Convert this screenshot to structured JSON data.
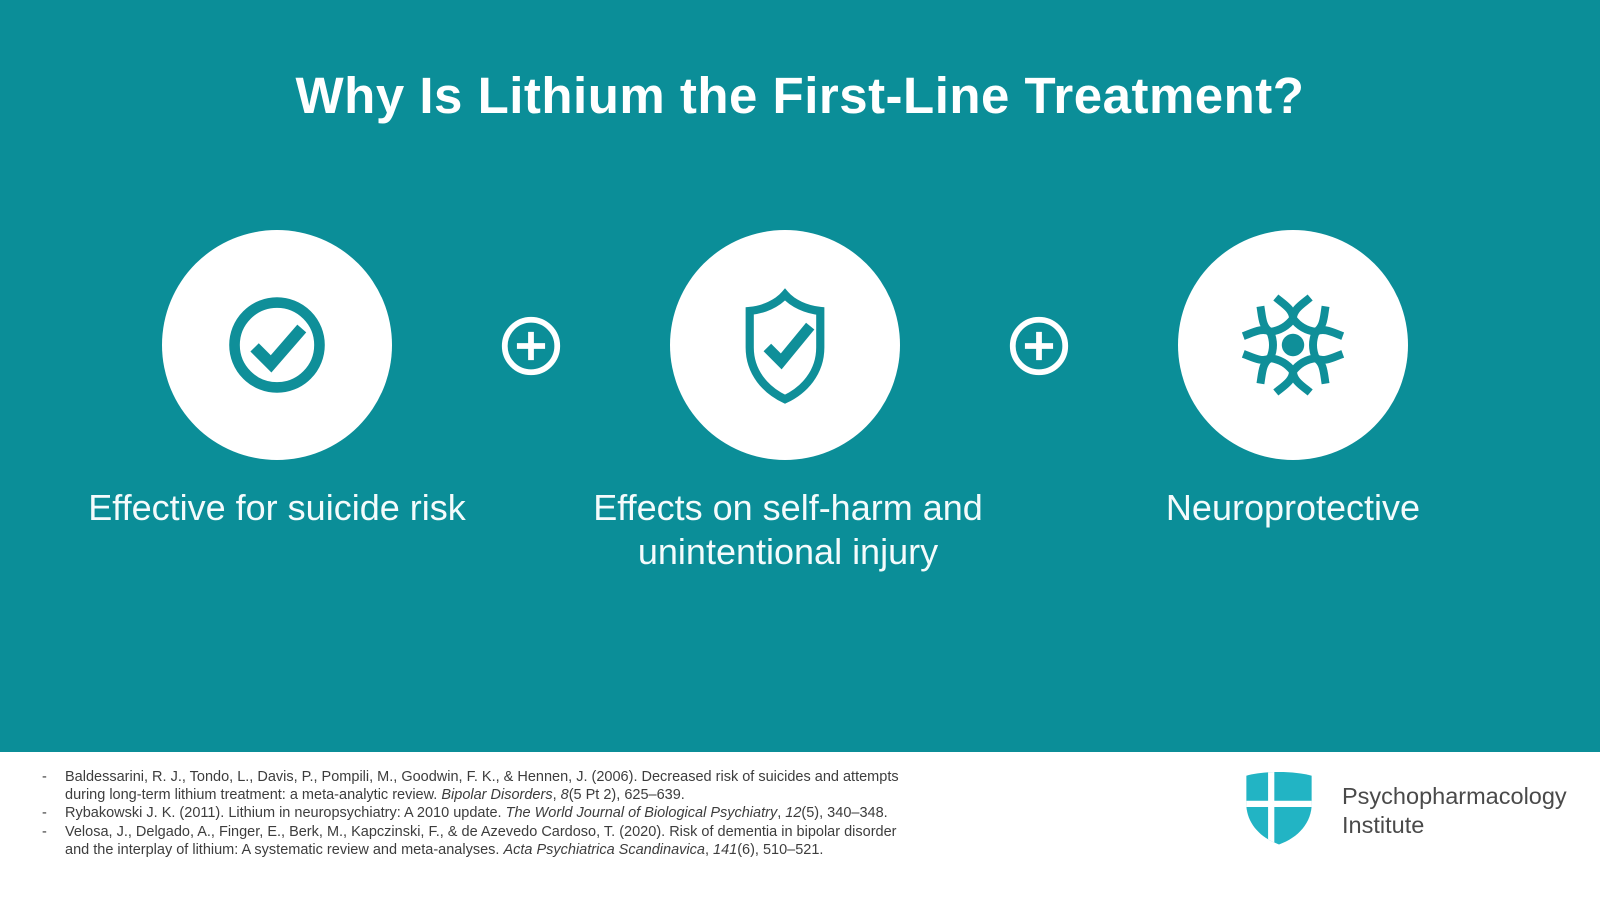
{
  "slide": {
    "title": "Why Is Lithium the First-Line Treatment?",
    "items": [
      {
        "icon": "check-circle-icon",
        "label": "Effective for suicide risk"
      },
      {
        "icon": "shield-check-icon",
        "label": "Effects on self-harm and unintentional injury"
      },
      {
        "icon": "neuron-icon",
        "label": "Neuroprotective"
      }
    ],
    "connector_icon": "plus-circle-icon"
  },
  "colors": {
    "background": "#0b8e98",
    "icon_teal": "#0f8f99",
    "footer_bg": "#ffffff",
    "logo_teal": "#22b4c4",
    "reference_text": "#3d3d3d"
  },
  "footer": {
    "reference_bullet": "-",
    "references": [
      {
        "segments": [
          {
            "text": "Baldessarini, R. J., Tondo, L., Davis, P., Pompili, M., Goodwin, F. K., & Hennen, J. (2006). Decreased risk of suicides and attempts during long-term lithium treatment: a meta-analytic review. ",
            "italic": false
          },
          {
            "text": "Bipolar Disorders",
            "italic": true
          },
          {
            "text": ", ",
            "italic": false
          },
          {
            "text": "8",
            "italic": true
          },
          {
            "text": "(5 Pt 2), 625–639.",
            "italic": false
          }
        ]
      },
      {
        "segments": [
          {
            "text": "Rybakowski J. K. (2011). Lithium in neuropsychiatry: A 2010 update. ",
            "italic": false
          },
          {
            "text": "The World Journal of Biological Psychiatry",
            "italic": true
          },
          {
            "text": ", ",
            "italic": false
          },
          {
            "text": "12",
            "italic": true
          },
          {
            "text": "(5), 340–348.",
            "italic": false
          }
        ]
      },
      {
        "segments": [
          {
            "text": "Velosa, J., Delgado, A., Finger, E., Berk, M., Kapczinski, F., & de Azevedo Cardoso, T. (2020). Risk of dementia in bipolar disorder and the interplay of lithium: A systematic review and meta-analyses. ",
            "italic": false
          },
          {
            "text": "Acta Psychiatrica Scandinavica",
            "italic": true
          },
          {
            "text": ", ",
            "italic": false
          },
          {
            "text": "141",
            "italic": true
          },
          {
            "text": "(6), 510–521.",
            "italic": false
          }
        ]
      }
    ],
    "logo": {
      "line1": "Psychopharmacology",
      "line2": "Institute"
    }
  }
}
